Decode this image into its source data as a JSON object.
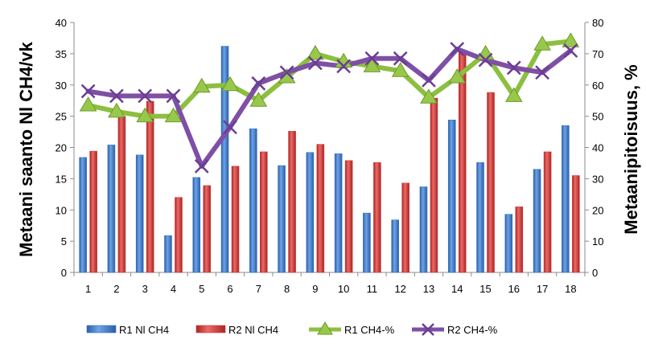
{
  "chart_data": {
    "type": "bar",
    "categories": [
      "1",
      "2",
      "3",
      "4",
      "5",
      "6",
      "7",
      "8",
      "9",
      "10",
      "11",
      "12",
      "13",
      "14",
      "15",
      "16",
      "17",
      "18"
    ],
    "ylabel": "Metaani saanto Nl CH4/vk",
    "y2label": "Metaanipitoisuus, %",
    "ylim": [
      0,
      40
    ],
    "y2lim": [
      0,
      80
    ],
    "yticks": [
      0,
      5,
      10,
      15,
      20,
      25,
      30,
      35,
      40
    ],
    "y2ticks": [
      0,
      10,
      20,
      30,
      40,
      50,
      60,
      70,
      80
    ],
    "grid": false,
    "legend_position": "bottom",
    "series": [
      {
        "name": "R1 Nl CH4",
        "kind": "bar",
        "axis": "left",
        "color": "#3a76c4",
        "values": [
          18.4,
          20.4,
          18.8,
          5.9,
          15.2,
          36.2,
          23.0,
          17.1,
          19.2,
          19.0,
          9.5,
          8.4,
          13.7,
          24.4,
          17.6,
          9.3,
          16.5,
          23.5
        ]
      },
      {
        "name": "R2 Nl CH4",
        "kind": "bar",
        "axis": "left",
        "color": "#d23c3a",
        "values": [
          19.4,
          25.0,
          27.4,
          12.0,
          13.9,
          17.0,
          19.3,
          22.6,
          20.5,
          17.9,
          17.6,
          14.3,
          27.9,
          35.6,
          28.8,
          10.5,
          19.3,
          15.5
        ]
      },
      {
        "name": "R1  CH4-%",
        "kind": "line",
        "axis": "right",
        "color": "#8cbf3f",
        "marker": "triangle",
        "values": [
          53.5,
          51.5,
          50.0,
          50.0,
          59.5,
          60.0,
          55.0,
          62.5,
          70.0,
          67.5,
          66.0,
          64.5,
          56.0,
          62.5,
          70.0,
          56.5,
          73.0,
          74.0
        ]
      },
      {
        "name": "R2 CH4-%",
        "kind": "line",
        "axis": "right",
        "color": "#7f4fa6",
        "marker": "x",
        "values": [
          58.0,
          56.5,
          56.5,
          56.5,
          34.0,
          46.5,
          60.5,
          64.0,
          67.0,
          66.0,
          68.5,
          68.5,
          61.5,
          71.5,
          68.0,
          65.5,
          64.0,
          71.0
        ]
      }
    ]
  }
}
